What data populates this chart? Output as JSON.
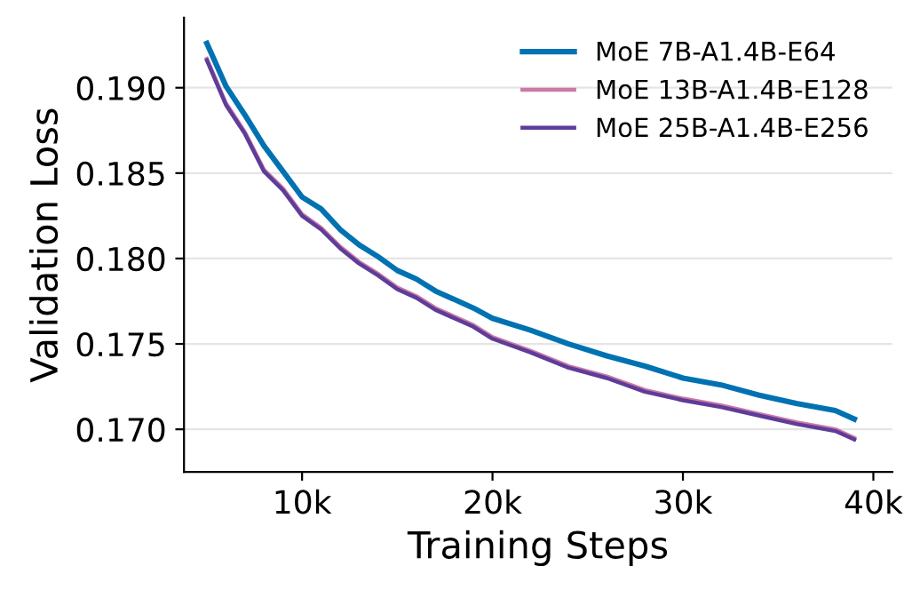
{
  "chart_data": {
    "type": "line",
    "xlabel": "Training Steps",
    "ylabel": "Validation Loss",
    "x": [
      5000,
      6000,
      7000,
      8000,
      9000,
      10000,
      11000,
      12000,
      13000,
      14000,
      15000,
      16000,
      17000,
      18000,
      19000,
      20000,
      22000,
      24000,
      26000,
      28000,
      30000,
      32000,
      34000,
      36000,
      38000,
      39000
    ],
    "series": [
      {
        "name": "MoE 7B-A1.4B-E64",
        "color": "#0072b2",
        "values": [
          0.1926,
          0.1901,
          0.1884,
          0.1866,
          0.1851,
          0.1836,
          0.1829,
          0.1817,
          0.1808,
          0.1801,
          0.1793,
          0.1788,
          0.1781,
          0.1776,
          0.1771,
          0.1765,
          0.1758,
          0.175,
          0.1743,
          0.1737,
          0.173,
          0.1726,
          0.172,
          0.1715,
          0.1711,
          0.1706
        ]
      },
      {
        "name": "MoE 13B-A1.4B-E128",
        "color": "#cc79a7",
        "values": [
          0.1917,
          0.1891,
          0.1874,
          0.1852,
          0.1841,
          0.1826,
          0.1818,
          0.1807,
          0.1798,
          0.1791,
          0.1783,
          0.1778,
          0.1771,
          0.1766,
          0.1761,
          0.1754,
          0.1746,
          0.1737,
          0.1731,
          0.1723,
          0.1718,
          0.1714,
          0.1709,
          0.1704,
          0.17,
          0.1695
        ]
      },
      {
        "name": "MoE 25B-A1.4B-E256",
        "color": "#5e3c99",
        "values": [
          0.1916,
          0.189,
          0.1873,
          0.1851,
          0.184,
          0.1825,
          0.1817,
          0.1806,
          0.1797,
          0.179,
          0.1782,
          0.1777,
          0.177,
          0.1765,
          0.176,
          0.1753,
          0.1745,
          0.1736,
          0.173,
          0.1722,
          0.1717,
          0.1713,
          0.1708,
          0.1703,
          0.1699,
          0.1694
        ]
      }
    ],
    "xlim": [
      3800,
      41000
    ],
    "ylim": [
      0.1675,
      0.1941
    ],
    "xticks": [
      {
        "value": 10000,
        "label": "10k"
      },
      {
        "value": 20000,
        "label": "20k"
      },
      {
        "value": 30000,
        "label": "30k"
      },
      {
        "value": 40000,
        "label": "40k"
      }
    ],
    "yticks": [
      {
        "value": 0.17,
        "label": "0.170"
      },
      {
        "value": 0.175,
        "label": "0.175"
      },
      {
        "value": 0.18,
        "label": "0.180"
      },
      {
        "value": 0.185,
        "label": "0.185"
      },
      {
        "value": 0.19,
        "label": "0.190"
      }
    ],
    "grid": "y",
    "legend": "top right",
    "marker": "none",
    "line_style": "solid"
  }
}
